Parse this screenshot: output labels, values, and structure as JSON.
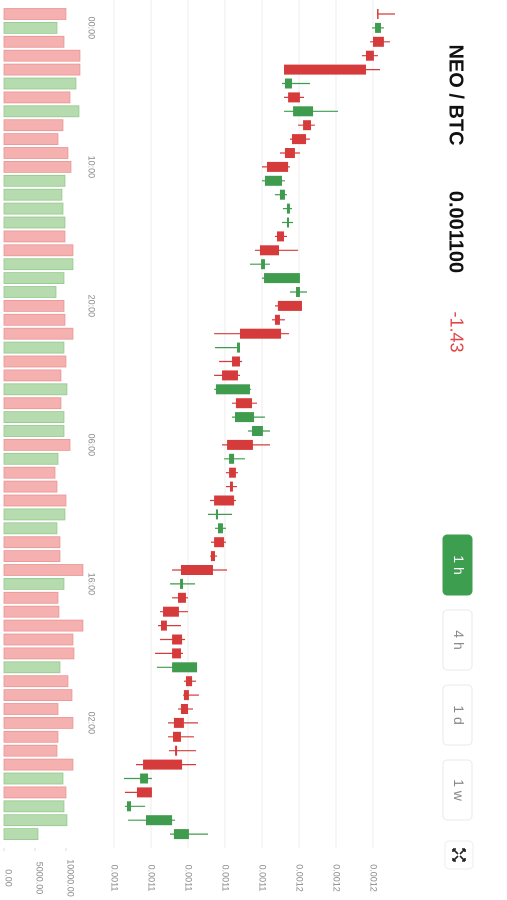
{
  "header": {
    "pair": "NEO / BTC",
    "price": "0.001100",
    "change": "-1.43"
  },
  "timeframes": [
    "1 h",
    "4 h",
    "1 d",
    "1 w"
  ],
  "active_timeframe": 0,
  "chart_data": {
    "type": "candlestick",
    "categories": [
      null,
      "00:00",
      null,
      null,
      null,
      null,
      null,
      null,
      null,
      null,
      null,
      "10:00",
      null,
      null,
      null,
      null,
      null,
      null,
      null,
      null,
      null,
      "20:00",
      null,
      null,
      null,
      null,
      null,
      null,
      null,
      null,
      null,
      "06:00",
      null,
      null,
      null,
      null,
      null,
      null,
      null,
      null,
      null,
      "16:00",
      null,
      null,
      null,
      null,
      null,
      null,
      null,
      null,
      null,
      "02:00",
      null,
      null,
      null,
      null,
      null,
      null,
      null,
      null
    ],
    "open": [
      0.0012027,
      0.0012011,
      0.0012059,
      0.0012005,
      0.0011962,
      0.0011524,
      0.0011605,
      0.0011568,
      0.0011665,
      0.0011638,
      0.0011578,
      0.0011541,
      0.0011416,
      0.0011497,
      0.0011535,
      0.0011535,
      0.0011519,
      0.0011492,
      0.0011395,
      0.0011411,
      0.0011584,
      0.0011616,
      0.0011497,
      0.0011503,
      0.0011265,
      0.0011281,
      0.001127,
      0.0011151,
      0.0011346,
      0.0011254,
      0.0011346,
      0.0011351,
      0.0011222,
      0.0011259,
      0.0011243,
      0.0011249,
      0.0011151,
      0.0011162,
      0.0011195,
      0.0011146,
      0.0011135,
      0.0010957,
      0.0010989,
      0.0010951,
      0.0010886,
      0.0010968,
      0.0010962,
      0.0010914,
      0.0011022,
      0.0011005,
      0.0011,
      0.0010978,
      0.0010962,
      0.0010941,
      0.0010968,
      0.0010741,
      0.0010805,
      0.001067,
      0.0010773,
      0.0010924
    ],
    "high": [
      0.0012119,
      0.0012059,
      0.0012092,
      0.0012027,
      0.0012038,
      0.0011659,
      0.0011627,
      0.0011811,
      0.0011686,
      0.0011659,
      0.0011605,
      0.0011551,
      0.0011524,
      0.0011535,
      0.0011562,
      0.0011568,
      0.0011535,
      0.0011595,
      0.0011443,
      0.0011605,
      0.0011643,
      0.0011616,
      0.0011524,
      0.0011546,
      0.0011281,
      0.0011292,
      0.0011281,
      0.0011341,
      0.0011373,
      0.0011416,
      0.0011443,
      0.0011443,
      0.0011308,
      0.001127,
      0.0011265,
      0.0011259,
      0.0011238,
      0.0011205,
      0.0011205,
      0.0011157,
      0.0011211,
      0.0011038,
      0.0011,
      0.0011,
      0.0010962,
      0.0010984,
      0.0010973,
      0.0011049,
      0.0011043,
      0.0011059,
      0.0011027,
      0.0011054,
      0.0011032,
      0.0011043,
      0.0011043,
      0.0010805,
      0.0010805,
      0.0010768,
      0.001093,
      0.0011108
    ],
    "low": [
      0.0012022,
      0.0011995,
      0.0011984,
      0.001194,
      0.0011519,
      0.0011508,
      0.0011519,
      0.0011519,
      0.0011595,
      0.0011551,
      0.0011497,
      0.00114,
      0.00114,
      0.001147,
      0.0011513,
      0.0011508,
      0.001147,
      0.0011362,
      0.0011335,
      0.00114,
      0.0011551,
      0.001147,
      0.0011454,
      0.0011141,
      0.0011146,
      0.0011168,
      0.0011141,
      0.0011141,
      0.0011238,
      0.0011238,
      0.0011324,
      0.0011184,
      0.0011195,
      0.0011205,
      0.0011205,
      0.0011119,
      0.0011108,
      0.0011146,
      0.0011124,
      0.0011119,
      0.0010914,
      0.0010903,
      0.0010914,
      0.0010849,
      0.0010838,
      0.0010849,
      0.0010822,
      0.0010832,
      0.0010978,
      0.0010973,
      0.0010946,
      0.0010892,
      0.0010892,
      0.0010897,
      0.0010719,
      0.0010654,
      0.0010659,
      0.0010659,
      0.0010676,
      0.0010903
    ],
    "close": [
      0.0012022,
      0.0012043,
      0.0012,
      0.0011962,
      0.0011519,
      0.0011562,
      0.0011541,
      0.0011676,
      0.0011622,
      0.0011562,
      0.0011524,
      0.0011427,
      0.0011508,
      0.0011524,
      0.0011551,
      0.0011546,
      0.0011481,
      0.0011389,
      0.0011416,
      0.0011605,
      0.0011605,
      0.0011486,
      0.001147,
      0.0011281,
      0.0011281,
      0.0011238,
      0.0011184,
      0.0011335,
      0.0011259,
      0.0011357,
      0.0011405,
      0.0011211,
      0.0011249,
      0.0011222,
      0.0011227,
      0.0011141,
      0.0011162,
      0.0011189,
      0.0011141,
      0.0011124,
      0.0010962,
      0.0010973,
      0.0010946,
      0.0010865,
      0.0010854,
      0.0010914,
      0.0010914,
      0.0011049,
      0.0010989,
      0.0010978,
      0.0010962,
      0.0010924,
      0.0010919,
      0.001093,
      0.0010757,
      0.0010784,
      0.0010724,
      0.0010692,
      0.0010914,
      0.0011005
    ],
    "volume": [
      10000,
      8550,
      9680,
      12260,
      12260,
      11610,
      10650,
      12100,
      9520,
      8710,
      10320,
      10810,
      9840,
      9350,
      9520,
      9840,
      9840,
      11130,
      11130,
      9680,
      8390,
      9680,
      9840,
      11130,
      9680,
      10000,
      9190,
      10160,
      9190,
      9680,
      9680,
      10650,
      8710,
      8230,
      8550,
      10000,
      9840,
      8550,
      9030,
      9030,
      12740,
      9680,
      8710,
      8870,
      12740,
      11130,
      11290,
      9030,
      10320,
      10970,
      8710,
      11130,
      8710,
      8550,
      11130,
      9520,
      10000,
      9680,
      10160,
      5480
    ],
    "ylim": [
      0.00105,
      0.001215
    ],
    "yticks": [
      {
        "value": 0.00106,
        "label": "0.0011"
      },
      {
        "value": 0.00108,
        "label": "0.0011"
      },
      {
        "value": 0.0011,
        "label": "0.0011"
      },
      {
        "value": 0.00112,
        "label": "0.0011"
      },
      {
        "value": 0.00114,
        "label": "0.0011"
      },
      {
        "value": 0.00116,
        "label": "0.0012"
      },
      {
        "value": 0.00118,
        "label": "0.0012"
      },
      {
        "value": 0.0012,
        "label": "0.0012"
      }
    ],
    "volume_lim": [
      0,
      15500
    ],
    "volume_ticks": [
      {
        "value": 0,
        "label": "0.00"
      },
      {
        "value": 5000,
        "label": "5000.00"
      },
      {
        "value": 10000,
        "label": "10000.00"
      }
    ],
    "grid": true,
    "up_color": "#3f9b4e",
    "down_color": "#d63b3b",
    "volume_up_color": "#b5dbae",
    "volume_down_color": "#f5b0b0"
  }
}
